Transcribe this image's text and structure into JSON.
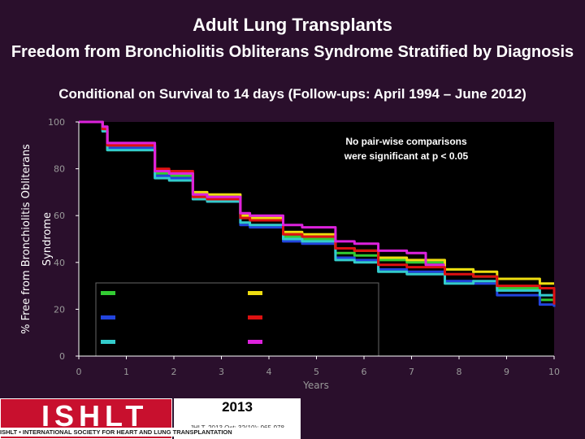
{
  "header": {
    "title": "Adult Lung Transplants",
    "subtitle": "Freedom from Bronchiolitis Obliterans Syndrome Stratified by Diagnosis",
    "condition": "Conditional on Survival to 14 days (Follow-ups: April 1994 – June 2012)"
  },
  "footer": {
    "logo_text": "ISHLT",
    "logo_strip": "ISHLT • INTERNATIONAL SOCIETY FOR HEART AND LUNG TRANSPLANTATION",
    "year": "2013",
    "citation": "JHLT. 2013 Oct; 32(10): 965-978"
  },
  "chart_data": {
    "type": "line",
    "step": true,
    "title": "",
    "xlabel": "Years",
    "ylabel": "% Free from Bronchiolitis Obliterans Syndrome",
    "xlim": [
      0,
      10
    ],
    "ylim": [
      0,
      100
    ],
    "xticks": [
      "0",
      "1",
      "2",
      "3",
      "4",
      "5",
      "6",
      "7",
      "8",
      "9",
      "10"
    ],
    "yticks": [
      "0",
      "20",
      "40",
      "60",
      "80",
      "100"
    ],
    "annotation": "No pair-wise comparisons were significant at p < 0.05",
    "legend_placement": "bottom-center",
    "grid": false,
    "series": [
      {
        "color": "#33cc33",
        "x": [
          0,
          0.5,
          0.6,
          1.0,
          1.6,
          1.9,
          2.4,
          2.7,
          3.4,
          3.6,
          4.3,
          4.7,
          5.4,
          5.8,
          6.3,
          6.9,
          7.7,
          8.3,
          8.8,
          9.7,
          10
        ],
        "y": [
          100,
          96,
          88,
          88,
          78,
          77,
          69,
          68,
          59,
          58,
          51,
          50,
          44,
          43,
          41,
          40,
          37,
          34,
          29,
          24,
          23
        ]
      },
      {
        "color": "#2244dd",
        "x": [
          0,
          0.5,
          0.6,
          1.0,
          1.6,
          1.9,
          2.4,
          2.7,
          3.4,
          3.6,
          4.3,
          4.7,
          5.4,
          5.8,
          6.3,
          6.9,
          7.7,
          8.3,
          8.8,
          9.7,
          10
        ],
        "y": [
          100,
          96,
          89,
          89,
          77,
          76,
          67,
          66,
          56,
          55,
          49,
          48,
          42,
          41,
          37,
          36,
          32,
          31,
          26,
          22,
          21
        ]
      },
      {
        "color": "#33cccc",
        "x": [
          0,
          0.5,
          0.6,
          1.0,
          1.6,
          1.9,
          2.4,
          2.7,
          3.4,
          3.6,
          4.3,
          4.7,
          5.4,
          5.8,
          6.3,
          6.9,
          7.7,
          8.3,
          8.8,
          9.7,
          10
        ],
        "y": [
          100,
          96,
          88,
          88,
          76,
          75,
          67,
          66,
          57,
          56,
          50,
          49,
          41,
          40,
          36,
          35,
          31,
          32,
          28,
          26,
          26
        ]
      },
      {
        "color": "#eedd11",
        "x": [
          0,
          0.5,
          0.6,
          1.0,
          1.6,
          1.9,
          2.4,
          2.7,
          3.4,
          3.6,
          4.3,
          4.7,
          5.4,
          5.8,
          6.3,
          6.9,
          7.7,
          8.3,
          8.8,
          9.7,
          10
        ],
        "y": [
          100,
          97,
          90,
          90,
          79,
          78,
          70,
          69,
          60,
          59,
          53,
          52,
          46,
          45,
          42,
          41,
          37,
          36,
          33,
          31,
          31
        ]
      },
      {
        "color": "#dd1111",
        "x": [
          0,
          0.5,
          0.6,
          1.0,
          1.6,
          1.9,
          2.4,
          2.7,
          3.4,
          3.6,
          4.3,
          4.7,
          5.4,
          5.8,
          6.3,
          6.9,
          7.7,
          8.3,
          8.8,
          9.7,
          10
        ],
        "y": [
          100,
          97,
          90,
          90,
          80,
          79,
          68,
          67,
          59,
          58,
          52,
          51,
          46,
          45,
          39,
          38,
          35,
          34,
          30,
          29,
          22
        ]
      },
      {
        "color": "#dd22dd",
        "x": [
          0,
          0.5,
          0.6,
          1.0,
          1.6,
          1.9,
          2.4,
          2.7,
          3.4,
          3.6,
          4.3,
          4.7,
          5.4,
          5.8,
          6.3,
          6.9,
          7.3,
          7.7
        ],
        "y": [
          100,
          98,
          91,
          91,
          79,
          78,
          69,
          68,
          61,
          60,
          56,
          55,
          49,
          48,
          45,
          44,
          39,
          39
        ]
      }
    ]
  }
}
